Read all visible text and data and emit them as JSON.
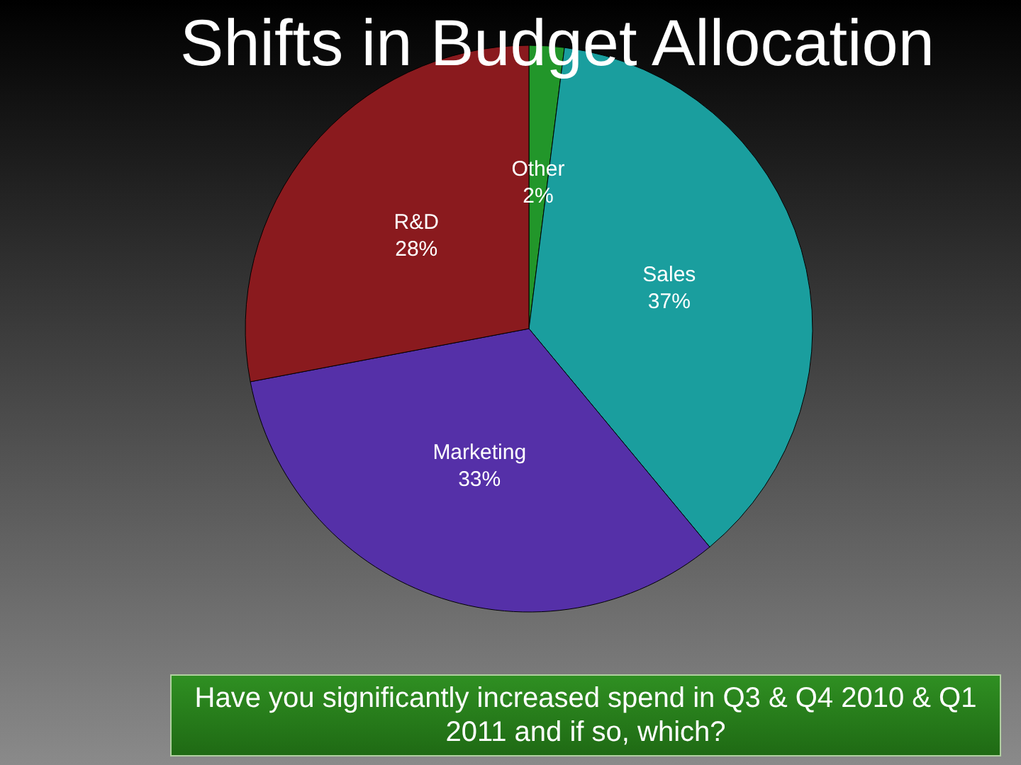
{
  "chart_data": {
    "type": "pie",
    "title": "Shifts in Budget Allocation",
    "categories": [
      "Other",
      "Sales",
      "Marketing",
      "R&D"
    ],
    "values": [
      2,
      37,
      33,
      28
    ],
    "value_labels": [
      "2%",
      "37%",
      "33%",
      "28%"
    ],
    "colors": [
      "#22962a",
      "#1a9e9e",
      "#5530a8",
      "#8a1a1e"
    ],
    "legend": false,
    "annotations": [
      "Have you significantly increased spend in Q3 & Q4 2010 & Q1 2011 and if so, which?"
    ]
  }
}
